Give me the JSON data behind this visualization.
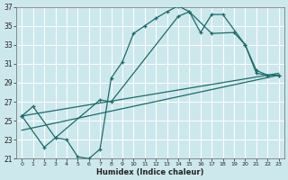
{
  "xlabel": "Humidex (Indice chaleur)",
  "ylabel": "",
  "xlim": [
    -0.5,
    23.5
  ],
  "ylim": [
    21,
    37
  ],
  "xticks": [
    0,
    1,
    2,
    3,
    4,
    5,
    6,
    7,
    8,
    9,
    10,
    11,
    12,
    13,
    14,
    15,
    16,
    17,
    18,
    19,
    20,
    21,
    22,
    23
  ],
  "yticks": [
    21,
    23,
    25,
    27,
    29,
    31,
    33,
    35,
    37
  ],
  "bg_color": "#cde8ec",
  "grid_color": "#b0d4d8",
  "line_color": "#1a6b6b",
  "line1_x": [
    0,
    2,
    3,
    4,
    5,
    6,
    7,
    8,
    9,
    10,
    11,
    12,
    13,
    14,
    15,
    16,
    17,
    18,
    20,
    21,
    22,
    23
  ],
  "line1_y": [
    25.5,
    22.2,
    23.2,
    23.0,
    21.2,
    21.0,
    22.0,
    29.5,
    31.2,
    34.2,
    35.0,
    35.8,
    36.5,
    37.1,
    36.5,
    34.3,
    36.2,
    36.2,
    33.0,
    30.3,
    29.8,
    29.8
  ],
  "line2_x": [
    0,
    1,
    3,
    7,
    8,
    14,
    15,
    17,
    19,
    20,
    21,
    22,
    23
  ],
  "line2_y": [
    25.5,
    26.5,
    23.2,
    27.2,
    27.0,
    36.0,
    36.5,
    34.2,
    34.3,
    33.0,
    30.0,
    29.8,
    29.8
  ],
  "line3_x": [
    0,
    23
  ],
  "line3_y": [
    25.5,
    30.0
  ],
  "line4_x": [
    0,
    23
  ],
  "line4_y": [
    24.0,
    29.8
  ]
}
